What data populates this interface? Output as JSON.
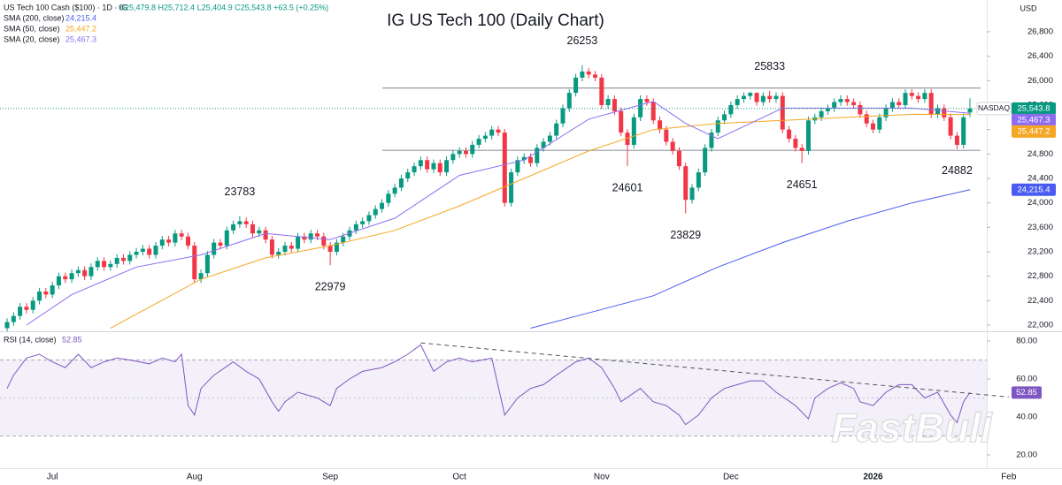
{
  "chart_data": [
    {
      "type": "candlestick",
      "title": "IG US Tech 100 (Daily Chart)",
      "header": "US Tech 100 Cash ($100) · 1D · IG",
      "header_values": "O25,479.8 H25,712.4 L25,404.9 C25,543.8 +63.5 (+0.25%)",
      "currency": "USD",
      "name": "NASDAQ",
      "last_label": "25,543.8",
      "up_color": "#089981",
      "down_color": "#f23645",
      "open": [
        21950,
        22050,
        22150,
        22300,
        22250,
        22400,
        22550,
        22500,
        22650,
        22800,
        22750,
        22850,
        22900,
        22800,
        22950,
        23050,
        22950,
        23000,
        23100,
        23050,
        23150,
        23200,
        23250,
        23150,
        23300,
        23400,
        23350,
        23500,
        23450,
        23300,
        22750,
        22850,
        23150,
        23350,
        23300,
        23550,
        23650,
        23700,
        23650,
        23500,
        23550,
        23400,
        23150,
        23200,
        23300,
        23250,
        23450,
        23400,
        23500,
        23450,
        23300,
        23200,
        23350,
        23450,
        23550,
        23650,
        23700,
        23800,
        23900,
        24000,
        24150,
        24250,
        24400,
        24500,
        24600,
        24700,
        24550,
        24650,
        24500,
        24700,
        24800,
        24850,
        24800,
        24950,
        25050,
        25100,
        25200,
        25150,
        24000,
        24500,
        24700,
        24750,
        24650,
        24900,
        25000,
        25100,
        25300,
        25550,
        25800,
        26050,
        26150,
        26100,
        26050,
        25600,
        25700,
        25500,
        25150,
        24950,
        25400,
        25700,
        25650,
        25350,
        25200,
        25000,
        24850,
        24600,
        24050,
        24250,
        24500,
        24900,
        25150,
        25350,
        25450,
        25600,
        25700,
        25750,
        25800,
        25650,
        25750,
        25700,
        25750,
        25200,
        25050,
        24900,
        24850,
        25350,
        25400,
        25500,
        25550,
        25650,
        25700,
        25650,
        25600,
        25450,
        25300,
        25200,
        25400,
        25550,
        25650,
        25600,
        25800,
        25750,
        25700,
        25800,
        25450,
        25550,
        25400,
        25100,
        24950,
        25479.8
      ],
      "high": [
        22110,
        22210,
        22360,
        22360,
        22460,
        22610,
        22610,
        22710,
        22860,
        22860,
        22910,
        22960,
        22960,
        23010,
        23110,
        23110,
        23060,
        23160,
        23160,
        23210,
        23260,
        23310,
        23310,
        23360,
        23460,
        23460,
        23560,
        23560,
        23510,
        23360,
        22910,
        23210,
        23410,
        23410,
        23610,
        23710,
        23783,
        23760,
        23710,
        23610,
        23610,
        23460,
        23260,
        23360,
        23360,
        23510,
        23510,
        23560,
        23560,
        23510,
        23360,
        23410,
        23510,
        23610,
        23710,
        23760,
        23860,
        23960,
        24060,
        24210,
        24310,
        24460,
        24560,
        24660,
        24760,
        24760,
        24710,
        24710,
        24760,
        24860,
        24910,
        24910,
        25010,
        25110,
        25160,
        25260,
        25260,
        25210,
        24560,
        24760,
        24810,
        24810,
        24960,
        25060,
        25160,
        25360,
        25610,
        25860,
        26110,
        26253,
        26210,
        26160,
        26110,
        25760,
        25760,
        25560,
        25210,
        25460,
        25760,
        25760,
        25710,
        25410,
        25260,
        25060,
        24910,
        24660,
        24310,
        24560,
        24960,
        25210,
        25410,
        25510,
        25660,
        25760,
        25810,
        25820,
        25810,
        25810,
        25833,
        25810,
        25810,
        25260,
        25110,
        24960,
        25410,
        25460,
        25560,
        25610,
        25710,
        25760,
        25760,
        25710,
        25660,
        25510,
        25360,
        25460,
        25610,
        25710,
        25710,
        25860,
        25860,
        25810,
        25860,
        25860,
        25610,
        25610,
        25460,
        25160,
        25460,
        25712.4
      ],
      "low": [
        21890,
        21990,
        22090,
        22190,
        22190,
        22340,
        22440,
        22440,
        22590,
        22690,
        22690,
        22790,
        22740,
        22740,
        22890,
        22890,
        22890,
        22940,
        22990,
        22990,
        23090,
        23140,
        23090,
        23090,
        23240,
        23290,
        23290,
        23390,
        23240,
        22690,
        22690,
        22790,
        23090,
        23240,
        23240,
        23490,
        23590,
        23590,
        23440,
        23440,
        23340,
        23090,
        23090,
        23140,
        23190,
        23190,
        23340,
        23340,
        23390,
        23240,
        22979,
        23140,
        23290,
        23390,
        23490,
        23590,
        23640,
        23740,
        23840,
        23940,
        24090,
        24190,
        24340,
        24440,
        24540,
        24490,
        24490,
        24440,
        24440,
        24640,
        24740,
        24740,
        24740,
        24890,
        24990,
        25040,
        25090,
        23940,
        23940,
        24440,
        24640,
        24590,
        24590,
        24840,
        24940,
        25040,
        25240,
        25490,
        25740,
        25990,
        26040,
        25990,
        25540,
        25540,
        25440,
        25090,
        24601,
        24890,
        25340,
        25590,
        25290,
        25140,
        24940,
        24790,
        24540,
        23829,
        23990,
        24190,
        24440,
        24840,
        25090,
        25290,
        25390,
        25540,
        25640,
        25690,
        25590,
        25590,
        25640,
        25640,
        25140,
        24990,
        24840,
        24651,
        24790,
        25290,
        25340,
        25440,
        25490,
        25590,
        25590,
        25540,
        25390,
        25240,
        25140,
        25140,
        25340,
        25490,
        25540,
        25540,
        25690,
        25640,
        25640,
        25390,
        25390,
        25340,
        25040,
        24882,
        24890,
        25404.9
      ],
      "close": [
        22050,
        22150,
        22300,
        22250,
        22400,
        22550,
        22500,
        22650,
        22800,
        22750,
        22850,
        22900,
        22800,
        22950,
        23050,
        22950,
        23000,
        23100,
        23050,
        23150,
        23200,
        23250,
        23150,
        23300,
        23400,
        23350,
        23500,
        23450,
        23300,
        22750,
        22850,
        23150,
        23350,
        23300,
        23550,
        23650,
        23700,
        23650,
        23500,
        23550,
        23400,
        23150,
        23200,
        23300,
        23250,
        23450,
        23400,
        23500,
        23450,
        23300,
        23200,
        23350,
        23450,
        23550,
        23650,
        23700,
        23800,
        23900,
        24000,
        24150,
        24250,
        24400,
        24500,
        24600,
        24700,
        24550,
        24650,
        24500,
        24700,
        24800,
        24850,
        24800,
        24950,
        25050,
        25100,
        25200,
        25150,
        24000,
        24500,
        24700,
        24750,
        24650,
        24900,
        25000,
        25100,
        25300,
        25550,
        25800,
        26050,
        26150,
        26100,
        26050,
        25600,
        25700,
        25500,
        25150,
        24950,
        25400,
        25700,
        25650,
        25350,
        25200,
        25000,
        24850,
        24600,
        24050,
        24250,
        24500,
        24900,
        25150,
        25350,
        25450,
        25600,
        25700,
        25750,
        25800,
        25650,
        25750,
        25700,
        25750,
        25200,
        25050,
        24900,
        24850,
        25350,
        25400,
        25500,
        25550,
        25650,
        25700,
        25650,
        25600,
        25450,
        25300,
        25200,
        25400,
        25550,
        25650,
        25600,
        25800,
        25750,
        25700,
        25800,
        25450,
        25550,
        25400,
        25100,
        24950,
        25400,
        25543.8
      ],
      "series": [
        {
          "name": "SMA (200, close)",
          "color": "#4a5cf0",
          "last_label": "24,215.4",
          "x": [
            81,
            90,
            100,
            110,
            120,
            130,
            140,
            149
          ],
          "values": [
            21950,
            22200,
            22480,
            22950,
            23350,
            23700,
            24000,
            24215.4
          ]
        },
        {
          "name": "SMA (50, close)",
          "color": "#f5a623",
          "last_label": "25,447.2",
          "x": [
            16,
            30,
            40,
            50,
            60,
            70,
            80,
            90,
            100,
            110,
            120,
            130,
            140,
            149
          ],
          "values": [
            21950,
            22750,
            23100,
            23300,
            23550,
            23950,
            24400,
            24850,
            25200,
            25300,
            25350,
            25400,
            25450,
            25447.2
          ]
        },
        {
          "name": "SMA (20, close)",
          "color": "#8e6cf0",
          "last_label": "25,467.3",
          "x": [
            3,
            10,
            20,
            30,
            40,
            50,
            60,
            70,
            80,
            90,
            100,
            105,
            110,
            120,
            130,
            140,
            149
          ],
          "values": [
            22000,
            22500,
            22950,
            23150,
            23500,
            23400,
            23750,
            24450,
            24700,
            25370,
            25660,
            25300,
            25050,
            25550,
            25550,
            25550,
            25467.3
          ]
        }
      ],
      "levels": [
        25880,
        24860
      ],
      "xlim": [
        -1.1,
        151.6
      ],
      "xticks": [
        {
          "value": 7,
          "label": "Jul"
        },
        {
          "value": 29,
          "label": "Aug"
        },
        {
          "value": 50,
          "label": "Sep"
        },
        {
          "value": 70,
          "label": "Oct"
        },
        {
          "value": 92,
          "label": "Nov"
        },
        {
          "value": 112,
          "label": "Dec"
        },
        {
          "value": 134,
          "label": "2026"
        },
        {
          "value": 155,
          "label": "Feb"
        }
      ],
      "ylim": [
        21899,
        27320
      ],
      "yticks": [
        {
          "value": 22000,
          "label": "22,000"
        },
        {
          "value": 22400,
          "label": "22,400"
        },
        {
          "value": 22800,
          "label": "22,800"
        },
        {
          "value": 23200,
          "label": "23,200"
        },
        {
          "value": 23600,
          "label": "23,600"
        },
        {
          "value": 24000,
          "label": "24,000"
        },
        {
          "value": 24400,
          "label": "24,400"
        },
        {
          "value": 24800,
          "label": "24,800"
        },
        {
          "value": 25200,
          "label": "25,200"
        },
        {
          "value": 25600,
          "label": "25,600"
        },
        {
          "value": 26000,
          "label": "26,000"
        },
        {
          "value": 26400,
          "label": "26,400"
        },
        {
          "value": 26800,
          "label": "26,800"
        }
      ],
      "watermark": "FastBull"
    },
    {
      "type": "line",
      "series": [
        {
          "name": "RSI (14, close)",
          "color": "#7e57c2",
          "x": [
            0,
            1,
            3,
            5,
            7,
            9,
            11,
            13,
            15,
            17,
            19,
            22,
            24,
            26,
            27,
            28,
            29,
            30,
            32,
            35,
            37,
            39,
            41,
            42,
            43,
            45,
            48,
            50,
            51,
            53,
            55,
            58,
            60,
            62,
            64,
            66,
            68,
            70,
            72,
            75,
            77,
            79,
            81,
            83,
            85,
            88,
            90,
            92,
            94,
            95,
            98,
            100,
            102,
            104,
            105,
            107,
            109,
            111,
            113,
            115,
            117,
            119,
            122,
            124,
            125,
            127,
            129,
            131,
            132,
            134,
            136,
            138,
            140,
            142,
            144,
            146,
            147,
            148,
            149
          ],
          "values": [
            55,
            62,
            71,
            73,
            69,
            66,
            73,
            66,
            69,
            71,
            70,
            68,
            71,
            69,
            73,
            46,
            41,
            55,
            62,
            69,
            64,
            60,
            48,
            43,
            48,
            53,
            50,
            46,
            55,
            60,
            64,
            66,
            69,
            73,
            78,
            64,
            69,
            71,
            69,
            71,
            41,
            50,
            55,
            57,
            62,
            69,
            71,
            66,
            55,
            48,
            55,
            48,
            46,
            41,
            36,
            41,
            50,
            55,
            57,
            59,
            59,
            53,
            46,
            39,
            50,
            55,
            58,
            55,
            48,
            46,
            53,
            57,
            57,
            50,
            53,
            41,
            37,
            48,
            52.85
          ]
        }
      ],
      "trendline": {
        "x": [
          64,
          155
        ],
        "values": [
          79,
          50.5
        ]
      },
      "band": [
        30,
        70
      ],
      "midline": 50,
      "ylim": [
        13,
        84.65
      ],
      "yticks": [
        {
          "value": 20,
          "label": "20.00"
        },
        {
          "value": 40,
          "label": "40.00"
        },
        {
          "value": 60,
          "label": "60.00"
        },
        {
          "value": 80,
          "label": "80.00"
        }
      ]
    }
  ]
}
